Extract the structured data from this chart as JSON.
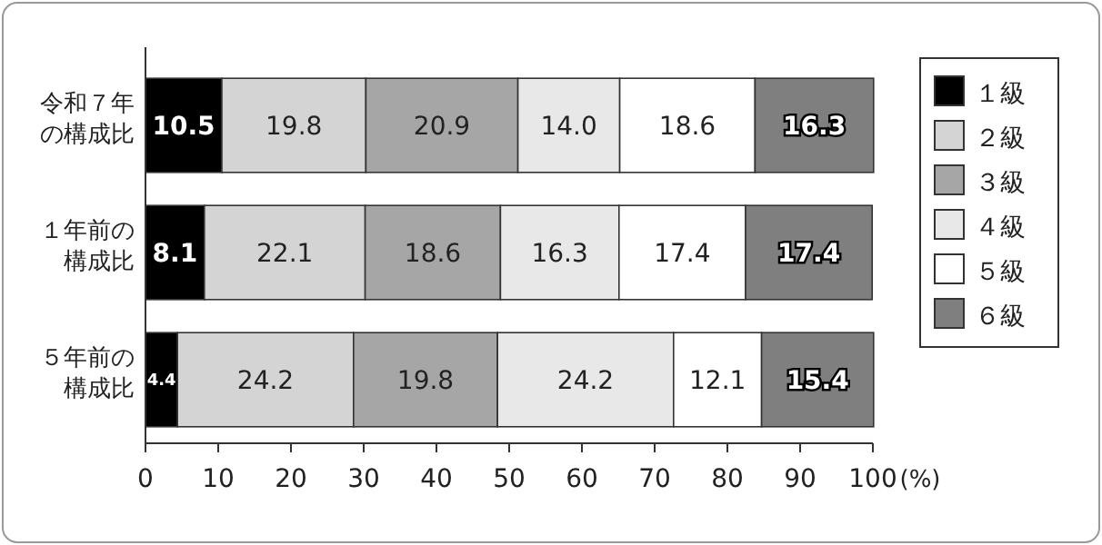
{
  "chart_data": {
    "type": "bar",
    "orientation": "horizontal",
    "stacked": true,
    "legend": "right",
    "xlabel": "(%)",
    "categories": [
      "令和７年の構成比",
      "１年前の構成比",
      "５年前の構成比"
    ],
    "xlim": [
      0,
      100
    ],
    "xticks": [
      0,
      10,
      20,
      30,
      40,
      50,
      60,
      70,
      80,
      90,
      100
    ],
    "series": [
      {
        "name": "１級",
        "color": "#000000",
        "values": [
          10.5,
          8.1,
          4.4
        ],
        "value_labels": [
          "10.5",
          "8.1",
          "4.4"
        ]
      },
      {
        "name": "２級",
        "color": "#d4d4d4",
        "values": [
          19.8,
          22.1,
          24.2
        ],
        "value_labels": [
          "19.8",
          "22.1",
          "24.2"
        ]
      },
      {
        "name": "３級",
        "color": "#a6a6a6",
        "values": [
          20.9,
          18.6,
          19.8
        ],
        "value_labels": [
          "20.9",
          "18.6",
          "19.8"
        ]
      },
      {
        "name": "４級",
        "color": "#e8e8e8",
        "values": [
          14.0,
          16.3,
          24.2
        ],
        "value_labels": [
          "14.0",
          "16.3",
          "24.2"
        ]
      },
      {
        "name": "５級",
        "color": "#ffffff",
        "values": [
          18.6,
          17.4,
          12.1
        ],
        "value_labels": [
          "18.6",
          "17.4",
          "12.1"
        ]
      },
      {
        "name": "６級",
        "color": "#7f7f7f",
        "values": [
          16.3,
          17.4,
          15.4
        ],
        "value_labels": [
          "16.3",
          "17.4",
          "15.4"
        ]
      }
    ]
  }
}
